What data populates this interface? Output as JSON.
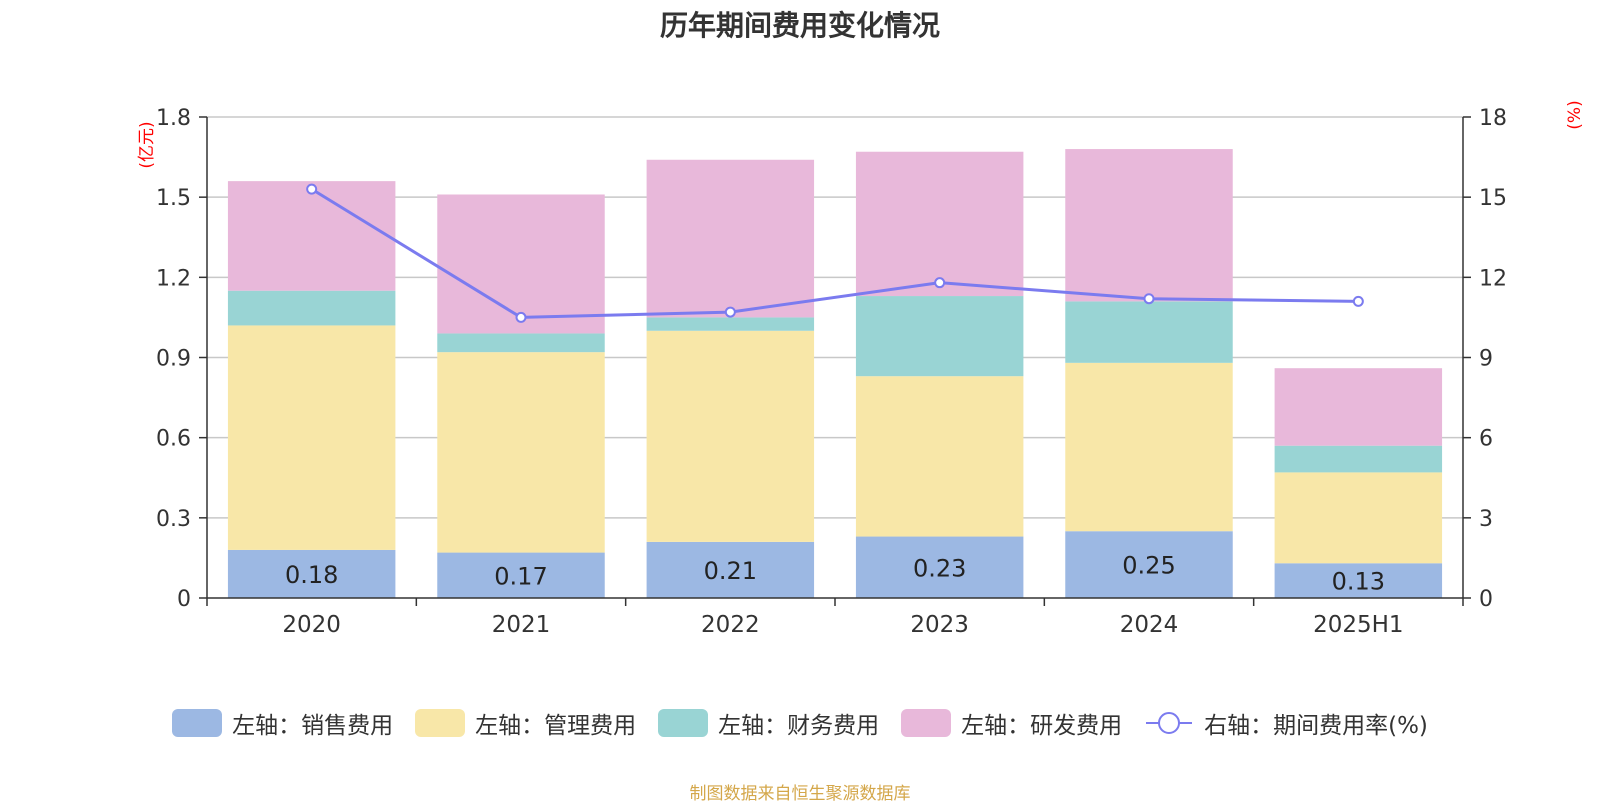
{
  "title": "历年期间费用变化情况",
  "source_note": "制图数据来自恒生聚源数据库",
  "chart_data": {
    "type": "bar",
    "stacked": true,
    "title": "历年期间费用变化情况",
    "categories": [
      "2020",
      "2021",
      "2022",
      "2023",
      "2024",
      "2025H1"
    ],
    "left_axis": {
      "unit_label": "(亿元)",
      "range": [
        0,
        1.8
      ],
      "ticks": [
        "0",
        "0.3",
        "0.6",
        "0.9",
        "1.2",
        "1.5",
        "1.8"
      ],
      "tick_values": [
        0,
        0.3,
        0.6,
        0.9,
        1.2,
        1.5,
        1.8
      ]
    },
    "right_axis": {
      "unit_label": "(%)",
      "range": [
        0,
        18
      ],
      "ticks": [
        "0",
        "3",
        "6",
        "9",
        "12",
        "15",
        "18"
      ],
      "tick_values": [
        0,
        3,
        6,
        9,
        12,
        15,
        18
      ]
    },
    "grid": true,
    "legend_position": "bottom",
    "series": [
      {
        "name": "左轴：销售费用",
        "axis": "left",
        "type": "bar",
        "color": "#9cb8e3",
        "values": [
          0.18,
          0.17,
          0.21,
          0.23,
          0.25,
          0.13
        ],
        "labels": [
          "0.18",
          "0.17",
          "0.21",
          "0.23",
          "0.25",
          "0.13"
        ]
      },
      {
        "name": "左轴：管理费用",
        "axis": "left",
        "type": "bar",
        "color": "#f8e7a8",
        "values": [
          0.84,
          0.75,
          0.79,
          0.6,
          0.63,
          0.34
        ]
      },
      {
        "name": "左轴：财务费用",
        "axis": "left",
        "type": "bar",
        "color": "#99d4d4",
        "values": [
          0.13,
          0.07,
          0.05,
          0.3,
          0.23,
          0.1
        ]
      },
      {
        "name": "左轴：研发费用",
        "axis": "left",
        "type": "bar",
        "color": "#e8b8da",
        "values": [
          0.41,
          0.52,
          0.59,
          0.54,
          0.57,
          0.29
        ]
      },
      {
        "name": "右轴：期间费用率(%)",
        "axis": "right",
        "type": "line",
        "color": "#7b7bef",
        "values": [
          15.3,
          10.5,
          10.7,
          11.8,
          11.2,
          11.1
        ]
      }
    ]
  }
}
